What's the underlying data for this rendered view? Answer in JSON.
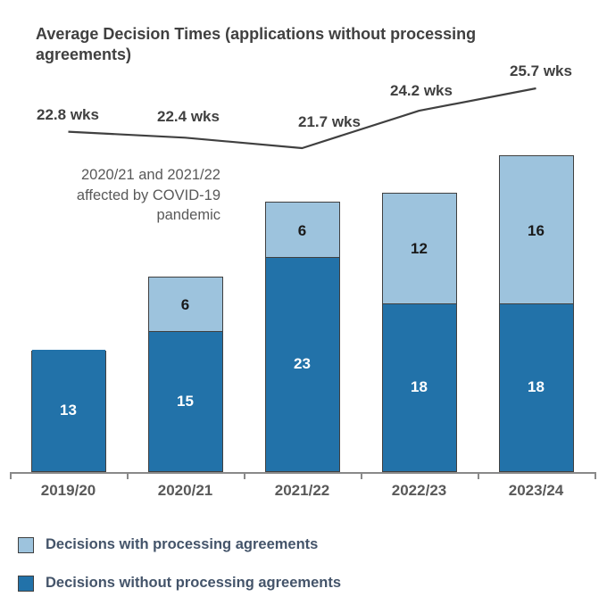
{
  "title": "Average Decision Times (applications without processing agreements)",
  "annotation": "2020/21 and 2021/22\naffected by COVID-19\npandemic",
  "chart_data": {
    "type": "bar",
    "subtype": "stacked-column-with-line-overlay",
    "title": "Average Decision Times (applications without processing agreements)",
    "categories": [
      "2019/20",
      "2020/21",
      "2021/22",
      "2022/23",
      "2023/24"
    ],
    "series": [
      {
        "name": "Decisions without processing agreements",
        "role": "bottom-segment",
        "color": "#2272A9",
        "label_color": "#ffffff",
        "values": [
          13,
          15,
          23,
          18,
          18
        ]
      },
      {
        "name": "Decisions with processing agreements",
        "role": "top-segment",
        "color": "#9DC3DD",
        "label_color": "#1a1a1a",
        "values": [
          0,
          6,
          6,
          12,
          16
        ]
      }
    ],
    "line": {
      "name": "Average decision time (weeks)",
      "values": [
        22.8,
        22.4,
        21.7,
        24.2,
        25.7
      ],
      "labels": [
        "22.8 wks",
        "22.4 wks",
        "21.7 wks",
        "24.2 wks",
        "25.7 wks"
      ],
      "color": "#404040"
    },
    "annotation": "2020/21 and 2021/22 affected by COVID-19 pandemic",
    "xlabel": "",
    "ylabel": "",
    "ylim": [
      0,
      35
    ],
    "grid": false,
    "legend_position": "bottom-left",
    "legend": [
      {
        "label": "Decisions with processing agreements",
        "color": "#9DC3DD"
      },
      {
        "label": "Decisions without processing agreements",
        "color": "#2272A9"
      }
    ]
  },
  "colors": {
    "title_text": "#404040",
    "annotation_text": "#595959",
    "axis_label_text": "#595959",
    "legend_text": "#44546A",
    "bar_border": "#404040",
    "axis_line": "#898989"
  }
}
